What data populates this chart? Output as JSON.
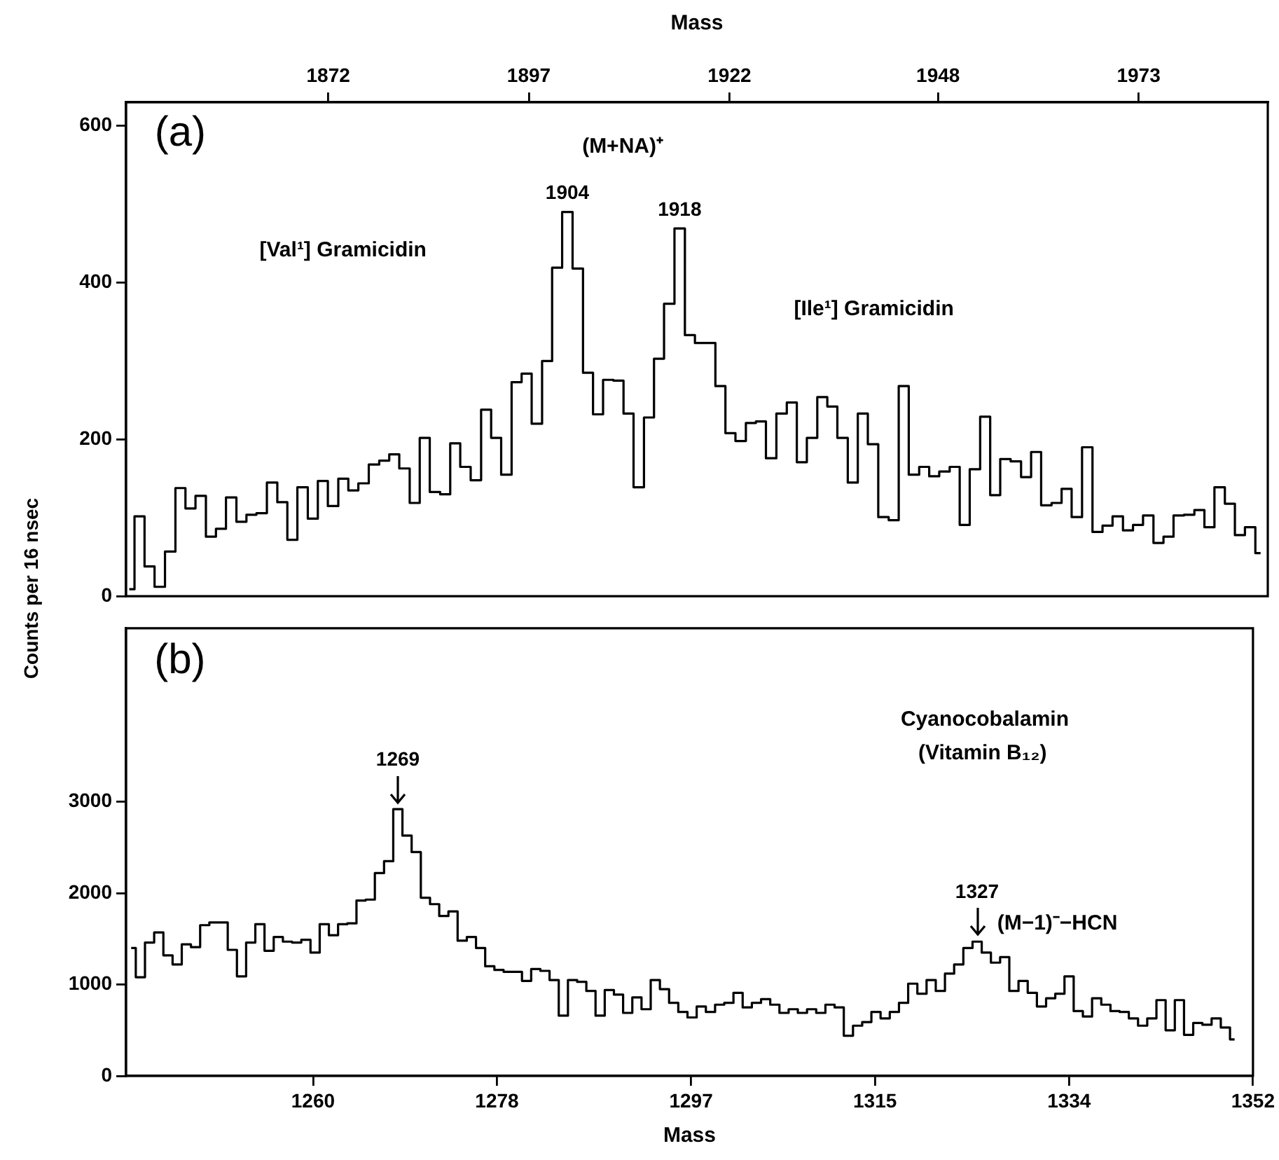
{
  "chart_data": [
    {
      "type": "step",
      "xlabel": "Mass",
      "ylabel": "Counts per 16 nsec",
      "color": "#000000",
      "xlim": [
        1846.8,
        1989.1
      ],
      "xticks": [
        1872,
        1897,
        1922,
        1948,
        1973
      ],
      "ylim": [
        0,
        630
      ],
      "yticks": [
        0,
        200,
        400,
        600
      ],
      "x": [
        1847.2,
        1848.5,
        1849.7,
        1851.0,
        1852.3,
        1853.6,
        1854.8,
        1856.1,
        1857.4,
        1858.6,
        1859.9,
        1861.2,
        1862.4,
        1863.7,
        1865.0,
        1866.3,
        1867.5,
        1868.8,
        1870.1,
        1871.3,
        1872.6,
        1873.9,
        1875.1,
        1876.4,
        1877.7,
        1879.0,
        1880.2,
        1881.5,
        1882.8,
        1884.0,
        1885.3,
        1886.6,
        1887.8,
        1889.1,
        1890.4,
        1891.7,
        1892.9,
        1894.2,
        1895.5,
        1896.7,
        1898.0,
        1899.3,
        1900.5,
        1901.8,
        1903.1,
        1904.4,
        1905.6,
        1906.9,
        1908.2,
        1909.4,
        1910.7,
        1912.0,
        1913.2,
        1914.5,
        1915.8,
        1917.1,
        1918.3,
        1919.6,
        1920.9,
        1922.1,
        1923.4,
        1924.7,
        1925.9,
        1927.2,
        1928.5,
        1929.8,
        1931.0,
        1932.3,
        1933.6,
        1934.8,
        1936.1,
        1937.4,
        1938.6,
        1939.9,
        1941.2,
        1942.5,
        1943.7,
        1945.0,
        1946.3,
        1947.5,
        1948.8,
        1950.1,
        1951.3,
        1952.6,
        1953.9,
        1955.1,
        1956.4,
        1957.7,
        1959.0,
        1960.2,
        1961.5,
        1962.8,
        1964.0,
        1965.3,
        1966.6,
        1967.9,
        1969.1,
        1970.4,
        1971.7,
        1972.9,
        1974.2,
        1975.5,
        1976.7,
        1978.0,
        1979.3,
        1980.6,
        1981.8,
        1983.1,
        1984.4,
        1985.6,
        1986.9,
        1988.2
      ],
      "values": [
        9,
        102,
        38,
        12,
        57,
        138,
        112,
        128,
        76,
        86,
        126,
        95,
        104,
        106,
        145,
        120,
        72,
        139,
        99,
        147,
        115,
        150,
        135,
        144,
        168,
        173,
        181,
        163,
        119,
        202,
        133,
        130,
        195,
        165,
        148,
        238,
        202,
        155,
        273,
        284,
        220,
        300,
        419,
        490,
        418,
        285,
        232,
        276,
        275,
        233,
        139,
        228,
        303,
        373,
        469,
        333,
        323,
        323,
        268,
        208,
        198,
        221,
        223,
        176,
        233,
        247,
        171,
        202,
        254,
        242,
        202,
        145,
        233,
        194,
        101,
        97,
        268,
        155,
        165,
        153,
        159,
        165,
        91,
        162,
        229,
        129,
        175,
        172,
        152,
        184,
        116,
        119,
        137,
        101,
        190,
        82,
        90,
        102,
        84,
        91,
        103,
        68,
        76,
        103,
        104,
        110,
        88,
        139,
        118,
        78,
        88,
        55
      ],
      "annotations": [
        "(a)",
        "(M+NA)⁺",
        "[Val¹] Gramicidin",
        "[Ile¹] Gramicidin",
        {
          "text": "1904",
          "x": 1901.8,
          "y": 490
        },
        {
          "text": "1918",
          "x": 1915.8,
          "y": 469
        }
      ]
    },
    {
      "type": "step",
      "xlabel": "Mass",
      "color": "#000000",
      "xlim": [
        1241.7,
        1352
      ],
      "xticks": [
        1260,
        1278,
        1297,
        1315,
        1334,
        1352
      ],
      "ylim": [
        0,
        4900
      ],
      "yticks": [
        0,
        1000,
        2000,
        3000
      ],
      "x": [
        1242.2,
        1243.1,
        1244.0,
        1244.9,
        1245.8,
        1246.7,
        1247.6,
        1248.5,
        1249.4,
        1250.3,
        1251.2,
        1252.1,
        1253.0,
        1253.9,
        1254.8,
        1255.7,
        1256.6,
        1257.5,
        1258.4,
        1259.3,
        1260.2,
        1261.1,
        1262.0,
        1262.9,
        1263.8,
        1264.7,
        1265.6,
        1266.5,
        1267.4,
        1268.3,
        1269.2,
        1270.1,
        1271.0,
        1271.9,
        1272.8,
        1273.7,
        1274.6,
        1275.5,
        1276.4,
        1277.3,
        1278.2,
        1279.1,
        1280.0,
        1280.9,
        1281.8,
        1282.7,
        1283.6,
        1284.5,
        1285.4,
        1286.3,
        1287.2,
        1288.1,
        1289.0,
        1289.9,
        1290.8,
        1291.7,
        1292.6,
        1293.5,
        1294.4,
        1295.3,
        1296.2,
        1297.1,
        1298.0,
        1298.9,
        1299.8,
        1300.7,
        1301.6,
        1302.5,
        1303.4,
        1304.3,
        1305.2,
        1306.1,
        1307.0,
        1307.9,
        1308.8,
        1309.7,
        1310.6,
        1311.5,
        1312.4,
        1313.3,
        1314.2,
        1315.1,
        1316.0,
        1316.9,
        1317.8,
        1318.7,
        1319.6,
        1320.5,
        1321.4,
        1322.3,
        1323.2,
        1324.1,
        1325.0,
        1325.9,
        1326.8,
        1327.7,
        1328.6,
        1329.5,
        1330.4,
        1331.3,
        1332.2,
        1333.1,
        1334.0,
        1334.9,
        1335.8,
        1336.7,
        1337.6,
        1338.5,
        1339.4,
        1340.3,
        1341.2,
        1342.1,
        1343.0,
        1343.9,
        1344.8,
        1345.7,
        1346.6,
        1347.5,
        1348.4,
        1349.3,
        1350.2
      ],
      "values": [
        1400,
        1080,
        1460,
        1570,
        1320,
        1220,
        1440,
        1410,
        1650,
        1680,
        1680,
        1380,
        1090,
        1460,
        1660,
        1370,
        1520,
        1470,
        1460,
        1490,
        1350,
        1660,
        1540,
        1660,
        1670,
        1920,
        1930,
        2220,
        2350,
        2920,
        2630,
        2450,
        1950,
        1880,
        1750,
        1800,
        1480,
        1520,
        1400,
        1200,
        1160,
        1140,
        1140,
        1040,
        1170,
        1150,
        1050,
        660,
        1050,
        1030,
        930,
        660,
        940,
        890,
        690,
        860,
        730,
        1050,
        950,
        800,
        700,
        640,
        760,
        700,
        780,
        800,
        910,
        750,
        800,
        840,
        780,
        690,
        730,
        690,
        730,
        690,
        780,
        750,
        440,
        550,
        590,
        700,
        630,
        700,
        800,
        1010,
        900,
        1050,
        930,
        1120,
        1220,
        1400,
        1470,
        1350,
        1240,
        1300,
        930,
        1040,
        910,
        760,
        850,
        900,
        1090,
        710,
        650,
        850,
        780,
        710,
        700,
        630,
        550,
        630,
        830,
        500,
        830,
        450,
        580,
        560,
        630,
        530,
        400
      ],
      "annotations": [
        "(b)",
        "Cyanocobalamin",
        "(Vitamin B₁₂)",
        "(M−1)⁻−HCN",
        {
          "text": "1269",
          "x": 1268.3,
          "y": 2920
        },
        {
          "text": "1327",
          "x": 1325.0,
          "y": 1470
        }
      ]
    }
  ]
}
